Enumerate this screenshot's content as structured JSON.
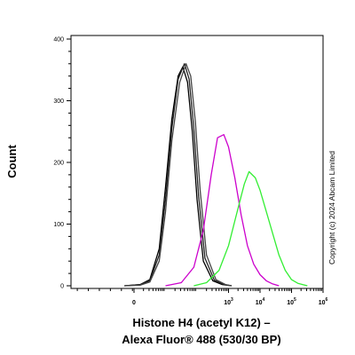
{
  "chart_data": {
    "type": "line",
    "xlabel_lines": [
      "Histone H4 (acetyl K12) –",
      "Alexa Fluor® 488 (530/30 BP)"
    ],
    "ylabel": "Count",
    "xscale": "biexponential",
    "xlim": [
      -2,
      6
    ],
    "ylim": [
      0,
      400
    ],
    "yticks": [
      0,
      100,
      200,
      300,
      400
    ],
    "xticks": [
      {
        "value": 0,
        "base": "0",
        "exp": ""
      },
      {
        "value": 3,
        "base": "10",
        "exp": "3"
      },
      {
        "value": 4,
        "base": "10",
        "exp": "4"
      },
      {
        "value": 5,
        "base": "10",
        "exp": "5"
      },
      {
        "value": 6,
        "base": "10",
        "exp": "6"
      }
    ],
    "grid": false,
    "legend": "none",
    "annotation": "Copyright (c) 2024  Abcam Limited",
    "series": [
      {
        "color": "#000000",
        "x": [
          -0.3,
          0.2,
          0.5,
          0.8,
          1.0,
          1.2,
          1.4,
          1.55,
          1.7,
          1.85,
          2.0,
          2.2,
          2.5,
          2.8,
          3.1
        ],
        "y": [
          0,
          2,
          10,
          60,
          160,
          270,
          340,
          355,
          330,
          250,
          140,
          40,
          8,
          2,
          0
        ]
      },
      {
        "color": "#222222",
        "x": [
          -0.3,
          0.2,
          0.5,
          0.8,
          1.0,
          1.2,
          1.4,
          1.6,
          1.75,
          1.9,
          2.05,
          2.25,
          2.55,
          2.85,
          3.1
        ],
        "y": [
          0,
          2,
          8,
          50,
          140,
          255,
          335,
          360,
          335,
          255,
          145,
          45,
          9,
          2,
          0
        ]
      },
      {
        "color": "#444444",
        "x": [
          -0.3,
          0.2,
          0.5,
          0.8,
          1.0,
          1.2,
          1.45,
          1.65,
          1.8,
          1.95,
          2.1,
          2.3,
          2.6,
          2.9,
          3.1
        ],
        "y": [
          0,
          1,
          6,
          40,
          120,
          235,
          330,
          360,
          340,
          265,
          155,
          50,
          10,
          2,
          0
        ]
      },
      {
        "color": "#cc00cc",
        "x": [
          1.0,
          1.5,
          1.9,
          2.2,
          2.45,
          2.65,
          2.85,
          3.0,
          3.2,
          3.4,
          3.6,
          3.8,
          4.0,
          4.2,
          4.4,
          4.6
        ],
        "y": [
          0,
          5,
          30,
          90,
          180,
          240,
          245,
          225,
          175,
          115,
          65,
          35,
          18,
          8,
          3,
          0
        ]
      },
      {
        "color": "#33ee33",
        "x": [
          1.9,
          2.3,
          2.7,
          3.0,
          3.3,
          3.5,
          3.65,
          3.85,
          4.0,
          4.2,
          4.4,
          4.6,
          4.8,
          5.0,
          5.2,
          5.5
        ],
        "y": [
          0,
          5,
          25,
          65,
          125,
          165,
          185,
          175,
          155,
          120,
          85,
          50,
          25,
          10,
          4,
          0
        ]
      }
    ]
  }
}
